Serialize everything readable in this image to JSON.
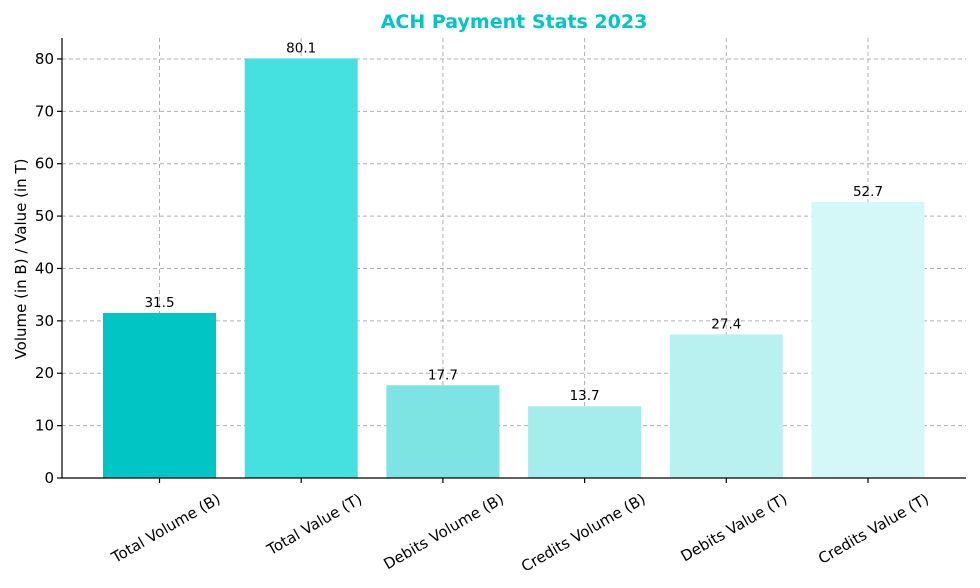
{
  "chart_data": {
    "type": "bar",
    "title": "ACH Payment Stats 2023",
    "title_color": "#00C5C5",
    "xlabel": "",
    "ylabel": "Volume (in B) / Value (in T)",
    "ylim": [
      0,
      84
    ],
    "yticks": [
      0,
      10,
      20,
      30,
      40,
      50,
      60,
      70,
      80
    ],
    "grid": true,
    "categories": [
      "Total Volume (B)",
      "Total Value (T)",
      "Debits Volume (B)",
      "Credits Volume (B)",
      "Debits Value (T)",
      "Credits Value (T)"
    ],
    "values": [
      31.5,
      80.1,
      17.7,
      13.7,
      27.4,
      52.7
    ],
    "data_labels": [
      "31.5",
      "80.1",
      "17.7",
      "13.7",
      "27.4",
      "52.7"
    ],
    "colors": [
      "#00C5C5",
      "#45E0E0",
      "#7DE3E3",
      "#A5EDED",
      "#B9F1F1",
      "#D4F8F8"
    ]
  }
}
